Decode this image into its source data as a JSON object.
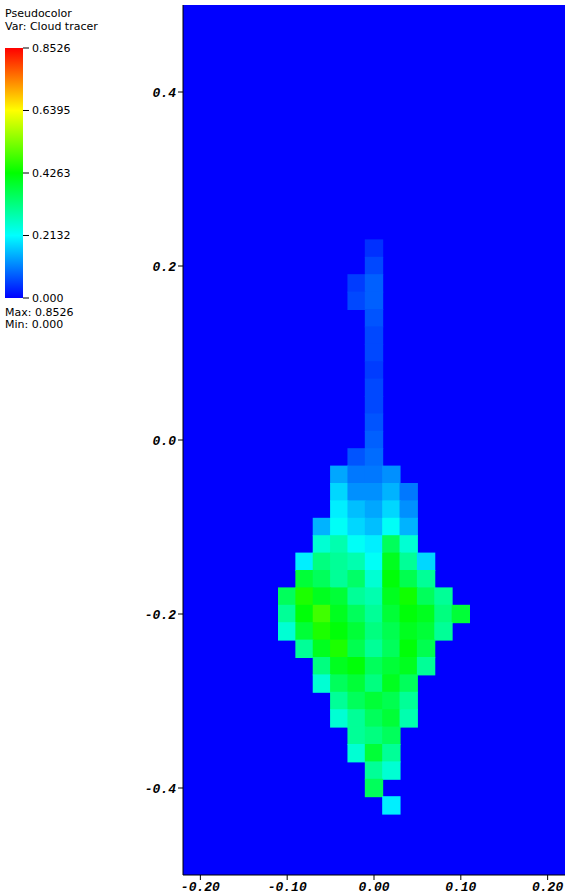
{
  "chart_data": {
    "type": "heatmap",
    "title": "Pseudocolor",
    "subtitle": "Var: Cloud tracer",
    "annotations": [
      "Max: 0.8526",
      "Min: 0.000"
    ],
    "xlim": [
      -0.22,
      0.22
    ],
    "ylim": [
      -0.5,
      0.5
    ],
    "xticks": [
      {
        "value": -0.2,
        "label": "-0.20"
      },
      {
        "value": -0.1,
        "label": "-0.10"
      },
      {
        "value": 0,
        "label": "0.00"
      },
      {
        "value": 0.1,
        "label": "0.10"
      },
      {
        "value": 0.2,
        "label": "0.20"
      }
    ],
    "yticks": [
      {
        "value": -0.4,
        "label": "-0.4"
      },
      {
        "value": -0.2,
        "label": "-0.2"
      },
      {
        "value": 0,
        "label": "0.0"
      },
      {
        "value": 0.2,
        "label": "0.2"
      },
      {
        "value": 0.4,
        "label": "0.4"
      }
    ],
    "colorbar": {
      "range": [
        0,
        0.8526
      ],
      "ticks": [
        {
          "value": 0,
          "label": "0.000"
        },
        0.2132,
        0.4263,
        0.6395,
        0.8526
      ],
      "colors": [
        "#0000ff",
        "#00ffff",
        "#00ff00",
        "#ffff00",
        "#ff0000"
      ]
    },
    "cell_size": 0.02,
    "cells": [
      [
        0,
        0.22,
        0.04
      ],
      [
        0,
        0.2,
        0.06
      ],
      [
        -0.02,
        0.18,
        0.05
      ],
      [
        0,
        0.18,
        0.08
      ],
      [
        -0.02,
        0.16,
        0.06
      ],
      [
        0,
        0.16,
        0.08
      ],
      [
        0,
        0.14,
        0.07
      ],
      [
        0,
        0.12,
        0.06
      ],
      [
        0,
        0.1,
        0.06
      ],
      [
        0,
        0.08,
        0.05
      ],
      [
        0,
        0.06,
        0.06
      ],
      [
        0,
        0.04,
        0.06
      ],
      [
        0,
        0.02,
        0.07
      ],
      [
        0,
        0,
        0.08
      ],
      [
        -0.02,
        -0.02,
        0.07
      ],
      [
        0,
        -0.02,
        0.09
      ],
      [
        -0.04,
        -0.04,
        0.14
      ],
      [
        -0.02,
        -0.04,
        0.1
      ],
      [
        0,
        -0.04,
        0.1
      ],
      [
        0.02,
        -0.04,
        0.12
      ],
      [
        -0.04,
        -0.06,
        0.18
      ],
      [
        -0.02,
        -0.06,
        0.12
      ],
      [
        0,
        -0.06,
        0.12
      ],
      [
        0.02,
        -0.06,
        0.15
      ],
      [
        0.04,
        -0.06,
        0.1
      ],
      [
        -0.04,
        -0.08,
        0.2
      ],
      [
        -0.02,
        -0.08,
        0.16
      ],
      [
        0,
        -0.08,
        0.14
      ],
      [
        0.02,
        -0.08,
        0.18
      ],
      [
        0.04,
        -0.08,
        0.12
      ],
      [
        -0.06,
        -0.1,
        0.15
      ],
      [
        -0.04,
        -0.1,
        0.22
      ],
      [
        -0.02,
        -0.1,
        0.18
      ],
      [
        0,
        -0.1,
        0.16
      ],
      [
        0.02,
        -0.1,
        0.22
      ],
      [
        0.04,
        -0.1,
        0.15
      ],
      [
        -0.06,
        -0.12,
        0.25
      ],
      [
        -0.04,
        -0.12,
        0.28
      ],
      [
        -0.02,
        -0.12,
        0.22
      ],
      [
        0,
        -0.12,
        0.2
      ],
      [
        0.02,
        -0.12,
        0.35
      ],
      [
        0.04,
        -0.12,
        0.25
      ],
      [
        -0.08,
        -0.14,
        0.2
      ],
      [
        -0.06,
        -0.14,
        0.32
      ],
      [
        -0.04,
        -0.14,
        0.3
      ],
      [
        -0.02,
        -0.14,
        0.28
      ],
      [
        0,
        -0.14,
        0.22
      ],
      [
        0.02,
        -0.14,
        0.4
      ],
      [
        0.04,
        -0.14,
        0.3
      ],
      [
        0.06,
        -0.14,
        0.18
      ],
      [
        -0.08,
        -0.16,
        0.38
      ],
      [
        -0.06,
        -0.16,
        0.35
      ],
      [
        -0.04,
        -0.16,
        0.3
      ],
      [
        -0.02,
        -0.16,
        0.34
      ],
      [
        0,
        -0.16,
        0.25
      ],
      [
        0.02,
        -0.16,
        0.42
      ],
      [
        0.04,
        -0.16,
        0.36
      ],
      [
        0.06,
        -0.16,
        0.3
      ],
      [
        -0.1,
        -0.18,
        0.35
      ],
      [
        -0.08,
        -0.18,
        0.45
      ],
      [
        -0.06,
        -0.18,
        0.4
      ],
      [
        -0.04,
        -0.18,
        0.38
      ],
      [
        -0.02,
        -0.18,
        0.3
      ],
      [
        0,
        -0.18,
        0.28
      ],
      [
        0.02,
        -0.18,
        0.4
      ],
      [
        0.04,
        -0.18,
        0.44
      ],
      [
        0.06,
        -0.18,
        0.35
      ],
      [
        0.08,
        -0.18,
        0.3
      ],
      [
        -0.1,
        -0.2,
        0.3
      ],
      [
        -0.08,
        -0.2,
        0.42
      ],
      [
        -0.06,
        -0.2,
        0.48
      ],
      [
        -0.04,
        -0.2,
        0.4
      ],
      [
        -0.02,
        -0.2,
        0.35
      ],
      [
        0,
        -0.2,
        0.3
      ],
      [
        0.02,
        -0.2,
        0.38
      ],
      [
        0.04,
        -0.2,
        0.42
      ],
      [
        0.06,
        -0.2,
        0.4
      ],
      [
        0.08,
        -0.2,
        0.32
      ],
      [
        0.1,
        -0.2,
        0.38
      ],
      [
        -0.1,
        -0.22,
        0.25
      ],
      [
        -0.08,
        -0.22,
        0.38
      ],
      [
        -0.06,
        -0.22,
        0.45
      ],
      [
        -0.04,
        -0.22,
        0.42
      ],
      [
        -0.02,
        -0.22,
        0.38
      ],
      [
        0,
        -0.22,
        0.32
      ],
      [
        0.02,
        -0.22,
        0.36
      ],
      [
        0.04,
        -0.22,
        0.4
      ],
      [
        0.06,
        -0.22,
        0.38
      ],
      [
        0.08,
        -0.22,
        0.3
      ],
      [
        -0.08,
        -0.24,
        0.3
      ],
      [
        -0.06,
        -0.24,
        0.4
      ],
      [
        -0.04,
        -0.24,
        0.45
      ],
      [
        -0.02,
        -0.24,
        0.36
      ],
      [
        0,
        -0.24,
        0.3
      ],
      [
        0.02,
        -0.24,
        0.35
      ],
      [
        0.04,
        -0.24,
        0.42
      ],
      [
        0.06,
        -0.24,
        0.36
      ],
      [
        -0.06,
        -0.26,
        0.32
      ],
      [
        -0.04,
        -0.26,
        0.4
      ],
      [
        -0.02,
        -0.26,
        0.42
      ],
      [
        0,
        -0.26,
        0.35
      ],
      [
        0.02,
        -0.26,
        0.38
      ],
      [
        0.04,
        -0.26,
        0.4
      ],
      [
        0.06,
        -0.26,
        0.3
      ],
      [
        -0.06,
        -0.28,
        0.25
      ],
      [
        -0.04,
        -0.28,
        0.35
      ],
      [
        -0.02,
        -0.28,
        0.38
      ],
      [
        0,
        -0.28,
        0.32
      ],
      [
        0.02,
        -0.28,
        0.4
      ],
      [
        0.04,
        -0.28,
        0.35
      ],
      [
        -0.04,
        -0.3,
        0.3
      ],
      [
        -0.02,
        -0.3,
        0.35
      ],
      [
        0,
        -0.3,
        0.38
      ],
      [
        0.02,
        -0.3,
        0.36
      ],
      [
        0.04,
        -0.3,
        0.3
      ],
      [
        -0.04,
        -0.32,
        0.25
      ],
      [
        -0.02,
        -0.32,
        0.3
      ],
      [
        0,
        -0.32,
        0.35
      ],
      [
        0.02,
        -0.32,
        0.38
      ],
      [
        0.04,
        -0.32,
        0.28
      ],
      [
        -0.02,
        -0.34,
        0.3
      ],
      [
        0,
        -0.34,
        0.32
      ],
      [
        0.02,
        -0.34,
        0.35
      ],
      [
        -0.02,
        -0.36,
        0.25
      ],
      [
        0,
        -0.36,
        0.38
      ],
      [
        0.02,
        -0.36,
        0.3
      ],
      [
        0,
        -0.38,
        0.3
      ],
      [
        0.02,
        -0.38,
        0.25
      ],
      [
        0,
        -0.4,
        0.35
      ],
      [
        0.02,
        -0.42,
        0.2
      ]
    ]
  }
}
